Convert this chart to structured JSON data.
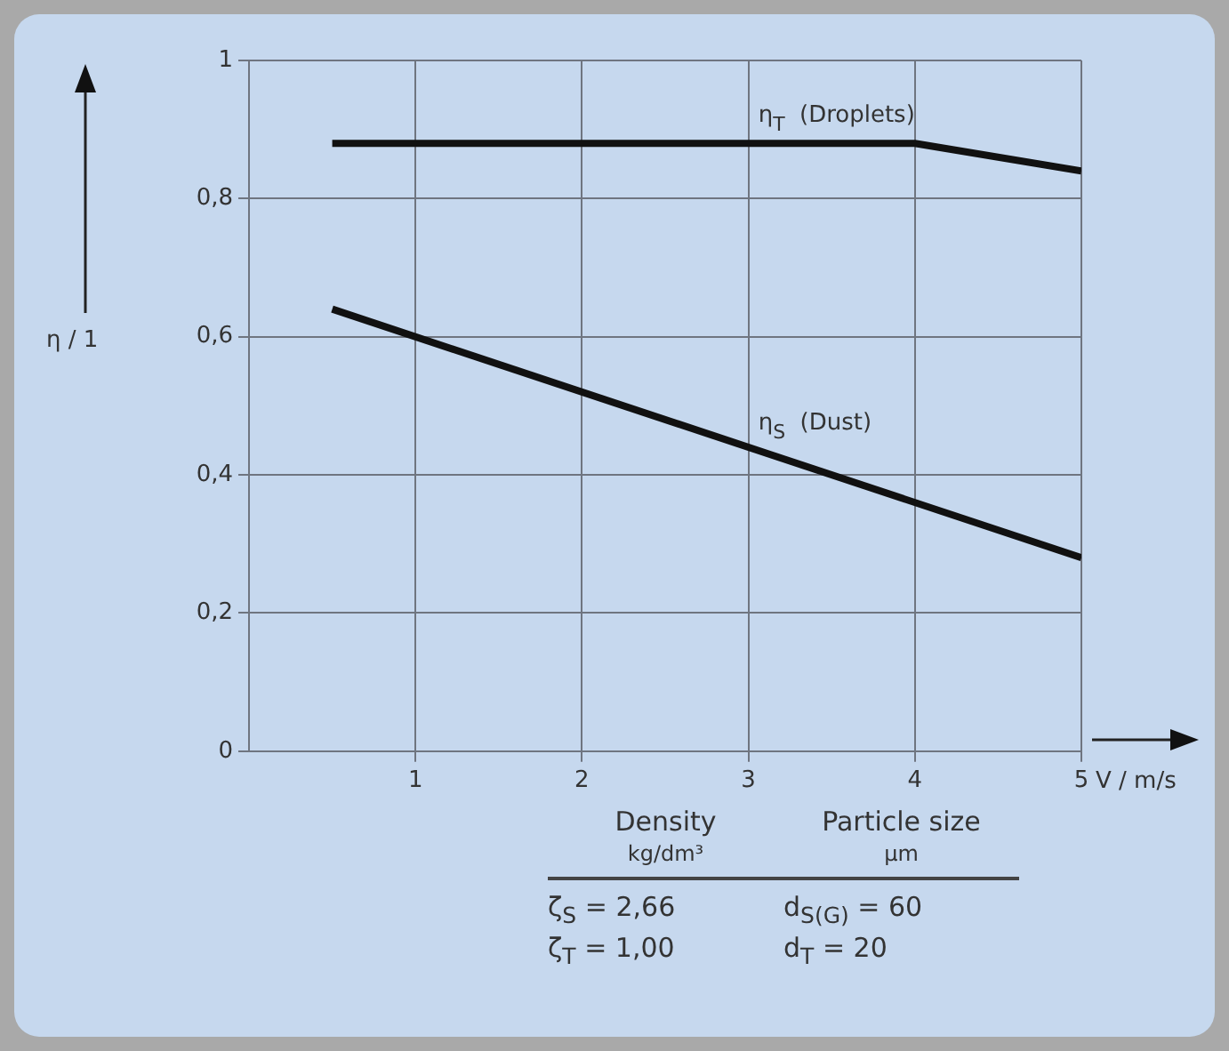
{
  "chart_data": {
    "type": "line",
    "xlabel": "V / m/s",
    "ylabel": "η / 1",
    "xlim": [
      0,
      5
    ],
    "xticks": [
      1,
      2,
      3,
      4,
      5
    ],
    "ylim": [
      0,
      1
    ],
    "yticks": [
      0,
      {
        "value": 0.2,
        "label": "0,2"
      },
      {
        "value": 0.4,
        "label": "0,4"
      },
      {
        "value": 0.6,
        "label": "0,6"
      },
      {
        "value": 0.8,
        "label": "0,8"
      },
      1
    ],
    "grid": true,
    "legend": false,
    "marker": "none",
    "line_style": "solid",
    "series": [
      {
        "name": "η$_{T}$ (Droplets)",
        "color": "#111111",
        "x": [
          0.5,
          4,
          5
        ],
        "values": [
          0.88,
          0.88,
          0.84
        ]
      },
      {
        "name": "η$_{S}$ (Dust)",
        "color": "#111111",
        "x": [
          0.5,
          5
        ],
        "values": [
          0.64,
          0.28
        ]
      }
    ],
    "annotations": [
      "Density",
      "Particle size",
      "kg/dm³",
      "µm",
      "ζ$_{S}$ = 2,66",
      "d$_{S(G)}$ = 60",
      "ζ$_{T}$ = 1,00",
      "d$_{T}$ = 20"
    ]
  }
}
